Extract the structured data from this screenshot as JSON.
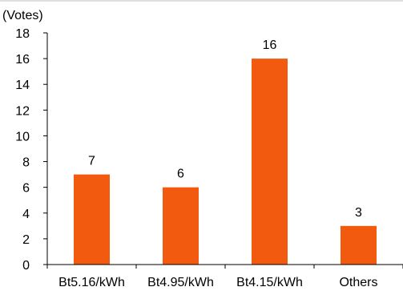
{
  "colors": {
    "bar": "#F15A0F",
    "axis": "#000000",
    "top_rule": "#BFBFBF"
  },
  "chart_data": {
    "type": "bar",
    "title": "",
    "xlabel": "",
    "ylabel": "(Votes)",
    "ylim": [
      0,
      18
    ],
    "yticks": [
      0,
      2,
      4,
      6,
      8,
      10,
      12,
      14,
      16,
      18
    ],
    "ytick_labels": [
      "0",
      "2",
      "4",
      "6",
      "8",
      "10",
      "12",
      "14",
      "16",
      "18"
    ],
    "categories": [
      "Bt5.16/kWh",
      "Bt4.95/kWh",
      "Bt4.15/kWh",
      "Others"
    ],
    "values": [
      7,
      6,
      16,
      3
    ],
    "data_labels": [
      "7",
      "6",
      "16",
      "3"
    ],
    "grid": false,
    "legend": "none"
  }
}
